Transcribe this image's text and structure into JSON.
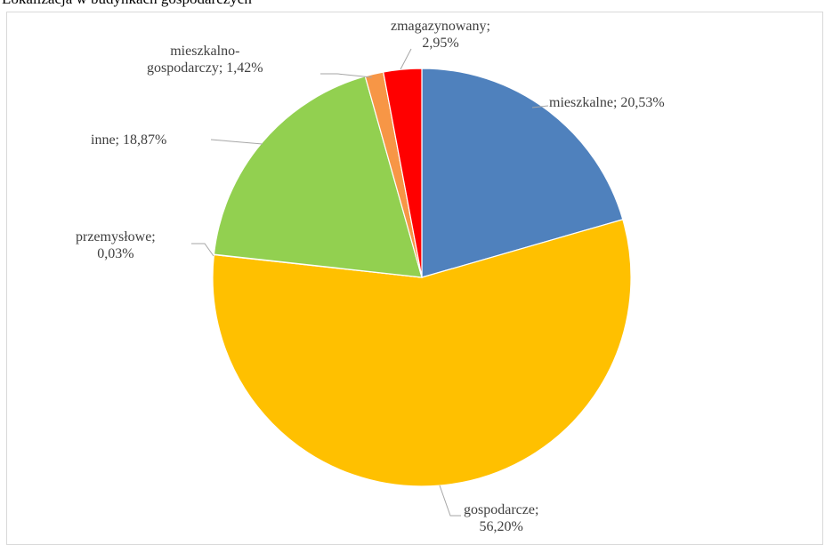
{
  "caption_partial": "Lokalizacja w budynkach gospodarczych",
  "chart_data": {
    "type": "pie",
    "title": "",
    "start_angle_deg": 0,
    "direction": "clockwise",
    "slices": [
      {
        "category": "mieszkalne",
        "value": 20.53,
        "label_line1": "mieszkalne; 20,53%",
        "label_line2": "",
        "color": "#4F81BD"
      },
      {
        "category": "gospodarcze",
        "value": 56.2,
        "label_line1": "gospodarcze;",
        "label_line2": "56,20%",
        "color": "#FFC000"
      },
      {
        "category": "przemysłowe",
        "value": 0.03,
        "label_line1": "przemysłowe;",
        "label_line2": "0,03%",
        "color": "#A5A5A5"
      },
      {
        "category": "inne",
        "value": 18.87,
        "label_line1": "inne; 18,87%",
        "label_line2": "",
        "color": "#92D050"
      },
      {
        "category": "mieszkalno-gospodarczy",
        "value": 1.42,
        "label_line1": "mieszkalno-",
        "label_line2": "gospodarczy; 1,42%",
        "color": "#F79646"
      },
      {
        "category": "zmagazynowany",
        "value": 2.95,
        "label_line1": "zmagazynowany;",
        "label_line2": "2,95%",
        "color": "#FF0000"
      }
    ],
    "leader_line_color": "#A6A6A6",
    "legend": "none"
  }
}
